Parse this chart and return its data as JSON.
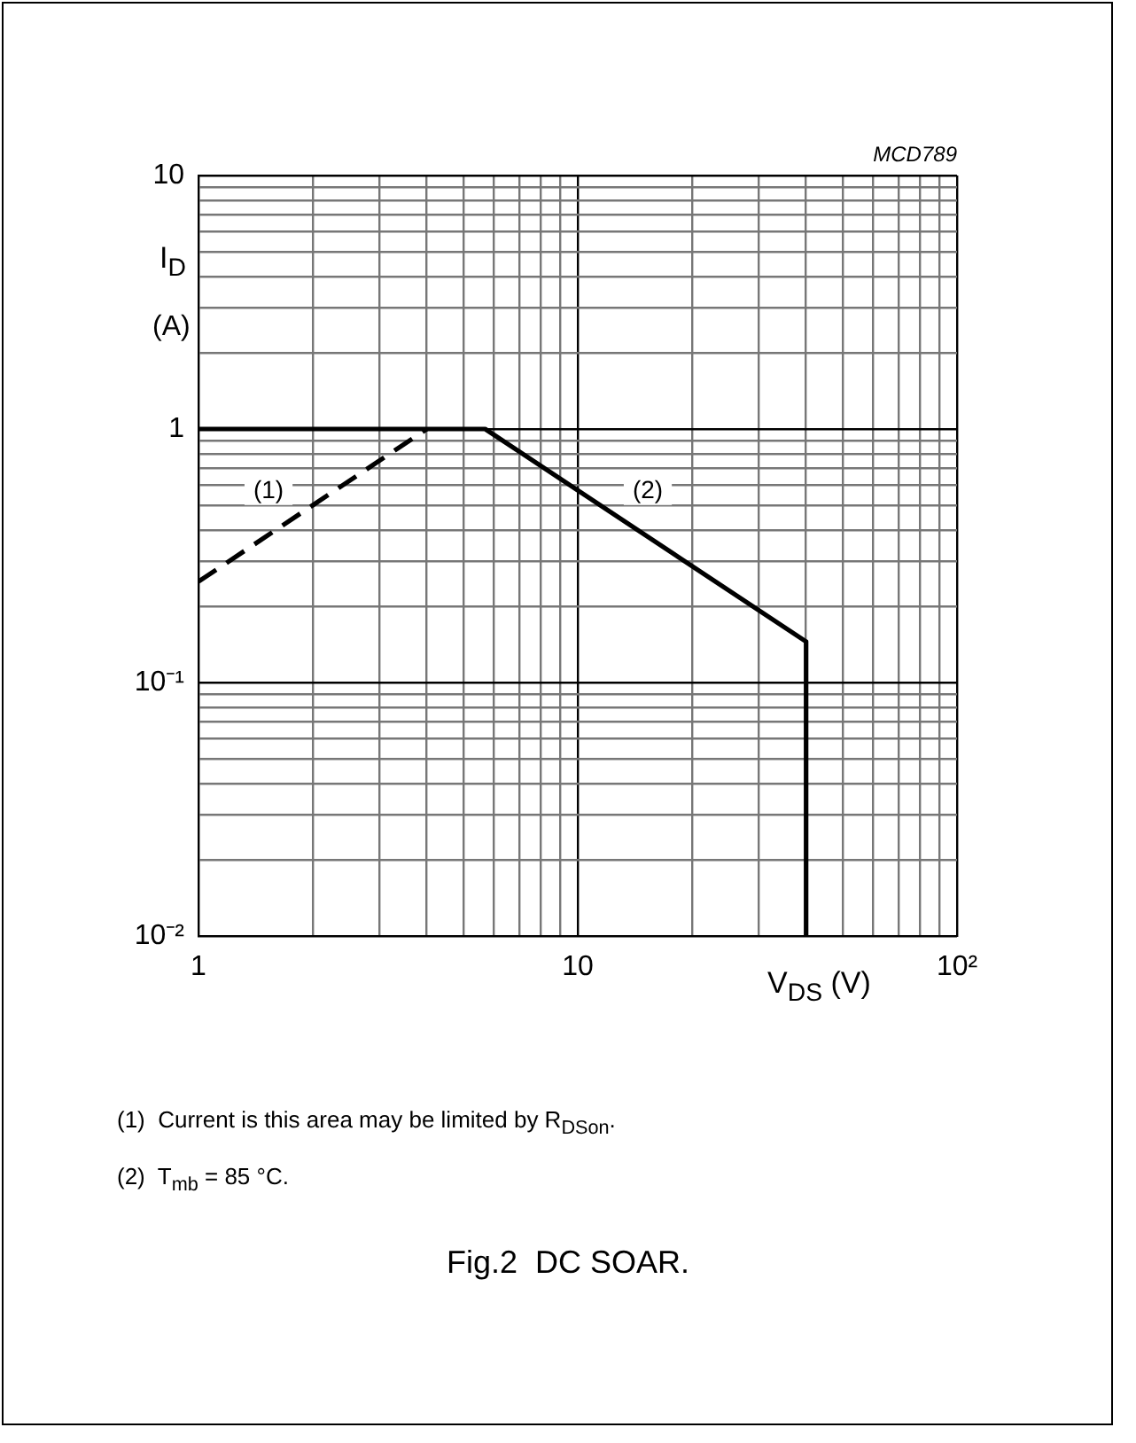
{
  "chart_data": {
    "type": "line",
    "title": "Fig.2  DC SOAR.",
    "xlabel": "V$_{DS}$ (V)",
    "ylabel": "I$_{D}$\n(A)",
    "log": "xy",
    "grid": true,
    "marker": "none",
    "xlim": [
      1,
      100
    ],
    "xticks": [
      1,
      {
        "value": 2,
        "label": null
      },
      {
        "value": 3,
        "label": null
      },
      {
        "value": 4,
        "label": null
      },
      {
        "value": 5,
        "label": null
      },
      {
        "value": 6,
        "label": null
      },
      {
        "value": 7,
        "label": null
      },
      {
        "value": 8,
        "label": null
      },
      {
        "value": 9,
        "label": null
      },
      10,
      {
        "value": 20,
        "label": null
      },
      {
        "value": 30,
        "label": null
      },
      {
        "value": 40,
        "label": null
      },
      {
        "value": 50,
        "label": null
      },
      {
        "value": 60,
        "label": null
      },
      {
        "value": 70,
        "label": null
      },
      {
        "value": 80,
        "label": null
      },
      {
        "value": 90,
        "label": null
      },
      {
        "value": 100,
        "label": "10²"
      }
    ],
    "ylim": [
      0.01,
      10
    ],
    "yticks": [
      {
        "value": 0.01,
        "label": "10⁻²"
      },
      {
        "value": 0.02,
        "label": null
      },
      {
        "value": 0.03,
        "label": null
      },
      {
        "value": 0.04,
        "label": null
      },
      {
        "value": 0.05,
        "label": null
      },
      {
        "value": 0.06,
        "label": null
      },
      {
        "value": 0.07,
        "label": null
      },
      {
        "value": 0.08,
        "label": null
      },
      {
        "value": 0.09,
        "label": null
      },
      {
        "value": 0.1,
        "label": "10⁻¹"
      },
      {
        "value": 0.2,
        "label": null
      },
      {
        "value": 0.3,
        "label": null
      },
      {
        "value": 0.4,
        "label": null
      },
      {
        "value": 0.5,
        "label": null
      },
      {
        "value": 0.6,
        "label": null
      },
      {
        "value": 0.7,
        "label": null
      },
      {
        "value": 0.8,
        "label": null
      },
      {
        "value": 0.9,
        "label": null
      },
      1,
      {
        "value": 2,
        "label": null
      },
      {
        "value": 3,
        "label": null
      },
      {
        "value": 4,
        "label": null
      },
      {
        "value": 5,
        "label": null
      },
      {
        "value": 6,
        "label": null
      },
      {
        "value": 7,
        "label": null
      },
      {
        "value": 8,
        "label": null
      },
      {
        "value": 9,
        "label": null
      },
      10
    ],
    "series": [
      {
        "color": "#000000",
        "x": [
          1,
          5.7,
          40,
          40
        ],
        "values": [
          1,
          1,
          0.145,
          0.01
        ],
        "line_style": "solid"
      },
      {
        "color": "#000000",
        "x": [
          1,
          4
        ],
        "values": [
          0.25,
          1
        ],
        "line_style": "dashed"
      }
    ],
    "annotations": [
      "MCD789",
      {
        "text": "(1)",
        "x": 1.53,
        "y": 0.57
      },
      {
        "text": "(2)",
        "x": 15.3,
        "y": 0.57
      },
      "(1)  Current is this area may be limited by R$_{DSon}$.",
      "(2)  T$_{mb}$ = 85 °C."
    ]
  }
}
